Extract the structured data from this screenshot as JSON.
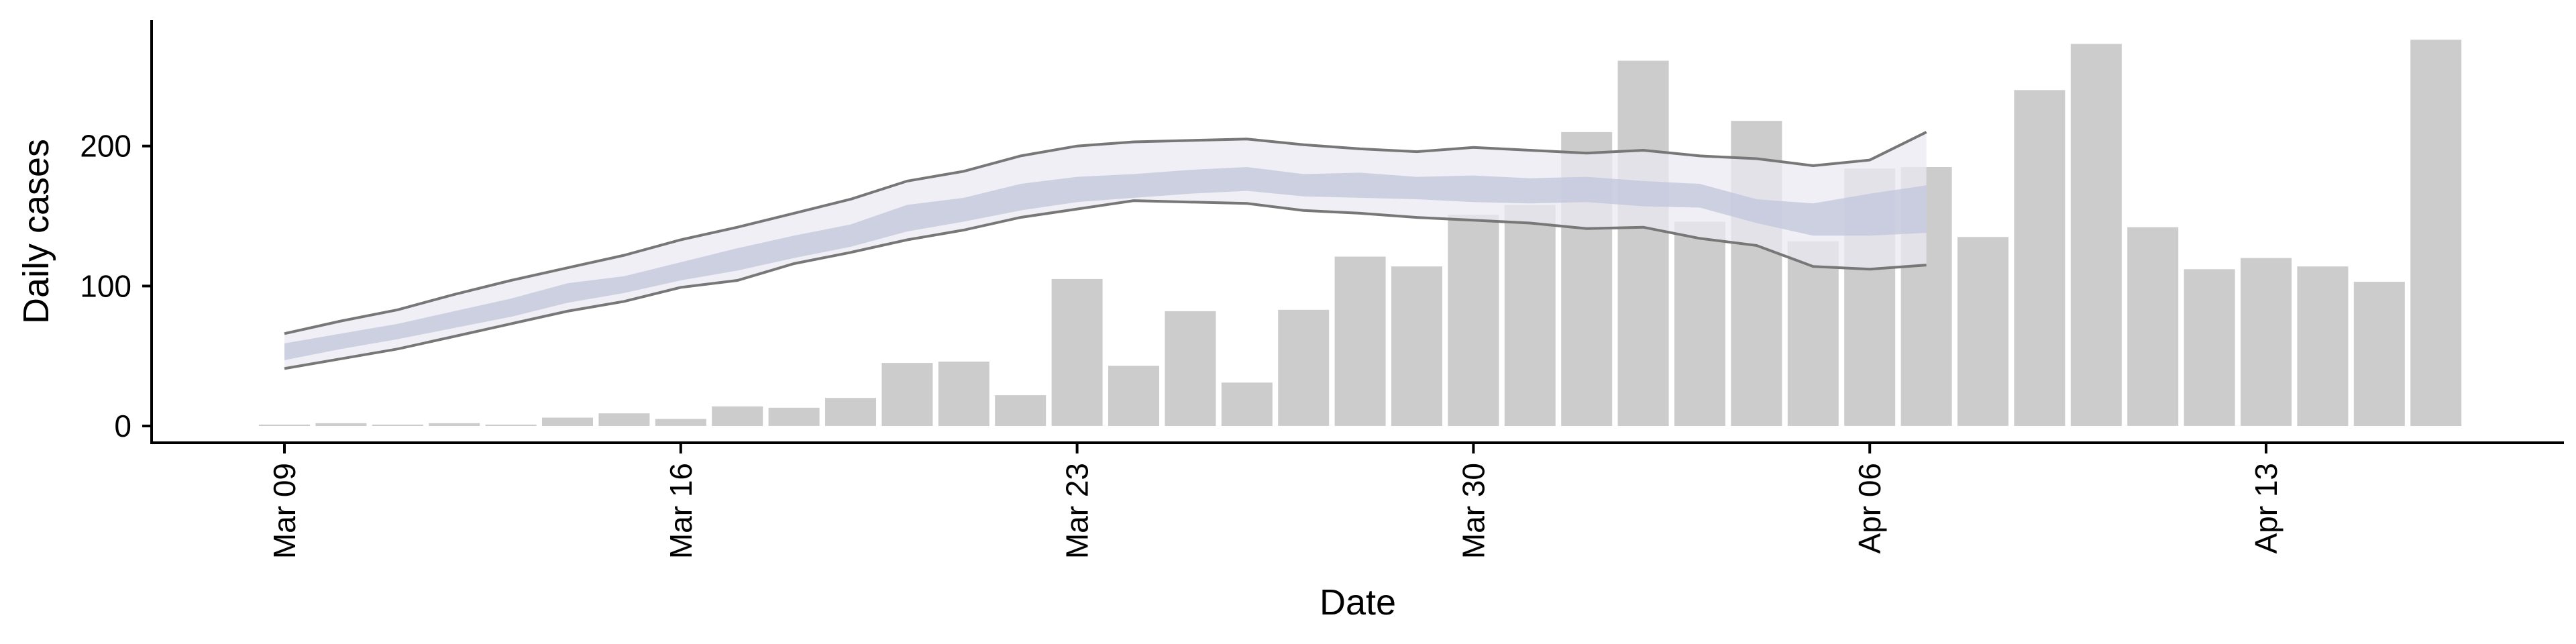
{
  "chart_data": {
    "type": "bar",
    "xlabel": "Date",
    "ylabel": "Daily cases",
    "ylim": [
      -12,
      290
    ],
    "grid": false,
    "legend": "none",
    "x_start": "2020-03-09",
    "x_end": "2020-04-16",
    "x_ticks": [
      {
        "date": "2020-03-09",
        "label": "Mar 09"
      },
      {
        "date": "2020-03-16",
        "label": "Mar 16"
      },
      {
        "date": "2020-03-23",
        "label": "Mar 23"
      },
      {
        "date": "2020-03-30",
        "label": "Mar 30"
      },
      {
        "date": "2020-04-06",
        "label": "Apr 06"
      },
      {
        "date": "2020-04-13",
        "label": "Apr 13"
      }
    ],
    "y_ticks": [
      0,
      100,
      200
    ],
    "bar_color": "#cccccc",
    "band_outer_color": "#e9eaf2",
    "band_inner_color": "#c3c8dc",
    "outline_color": "#777777",
    "series": [
      {
        "type": "bar",
        "dates": [
          "2020-03-09",
          "2020-03-10",
          "2020-03-11",
          "2020-03-12",
          "2020-03-13",
          "2020-03-14",
          "2020-03-15",
          "2020-03-16",
          "2020-03-17",
          "2020-03-18",
          "2020-03-19",
          "2020-03-20",
          "2020-03-21",
          "2020-03-22",
          "2020-03-23",
          "2020-03-24",
          "2020-03-25",
          "2020-03-26",
          "2020-03-27",
          "2020-03-28",
          "2020-03-29",
          "2020-03-30",
          "2020-03-31",
          "2020-04-01",
          "2020-04-02",
          "2020-04-03",
          "2020-04-04",
          "2020-04-05",
          "2020-04-06",
          "2020-04-07",
          "2020-04-08",
          "2020-04-09",
          "2020-04-10",
          "2020-04-11",
          "2020-04-12",
          "2020-04-13",
          "2020-04-14",
          "2020-04-15",
          "2020-04-16"
        ],
        "values": [
          1,
          2,
          1,
          2,
          1,
          6,
          9,
          5,
          14,
          13,
          20,
          45,
          46,
          22,
          105,
          43,
          82,
          31,
          83,
          121,
          114,
          151,
          158,
          210,
          261,
          146,
          218,
          132,
          184,
          185,
          135,
          240,
          273,
          142,
          112,
          120,
          114,
          103,
          276
        ]
      },
      {
        "type": "band",
        "dates": [
          "2020-03-09",
          "2020-03-10",
          "2020-03-11",
          "2020-03-12",
          "2020-03-13",
          "2020-03-14",
          "2020-03-15",
          "2020-03-16",
          "2020-03-17",
          "2020-03-18",
          "2020-03-19",
          "2020-03-20",
          "2020-03-21",
          "2020-03-22",
          "2020-03-23",
          "2020-03-24",
          "2020-03-25",
          "2020-03-26",
          "2020-03-27",
          "2020-03-28",
          "2020-03-29",
          "2020-03-30",
          "2020-03-31",
          "2020-04-01",
          "2020-04-02",
          "2020-04-03",
          "2020-04-04",
          "2020-04-05",
          "2020-04-06",
          "2020-04-07"
        ],
        "outer_lower": [
          41,
          48,
          55,
          64,
          73,
          82,
          89,
          99,
          104,
          116,
          124,
          133,
          140,
          149,
          155,
          161,
          160,
          159,
          154,
          152,
          149,
          147,
          145,
          141,
          142,
          134,
          129,
          114,
          112,
          115
        ],
        "outer_upper": [
          66,
          75,
          83,
          94,
          104,
          113,
          122,
          133,
          142,
          152,
          162,
          175,
          182,
          193,
          200,
          203,
          204,
          205,
          201,
          198,
          196,
          199,
          197,
          195,
          197,
          193,
          191,
          186,
          190,
          210
        ],
        "inner_lower": [
          47,
          55,
          62,
          70,
          78,
          88,
          95,
          104,
          111,
          120,
          128,
          139,
          146,
          154,
          160,
          163,
          166,
          168,
          164,
          163,
          162,
          160,
          159,
          160,
          157,
          156,
          145,
          136,
          136,
          138
        ],
        "inner_upper": [
          59,
          66,
          73,
          82,
          91,
          102,
          107,
          117,
          127,
          136,
          144,
          158,
          163,
          173,
          178,
          180,
          183,
          185,
          180,
          181,
          178,
          179,
          177,
          178,
          175,
          173,
          162,
          159,
          166,
          172
        ]
      }
    ]
  }
}
